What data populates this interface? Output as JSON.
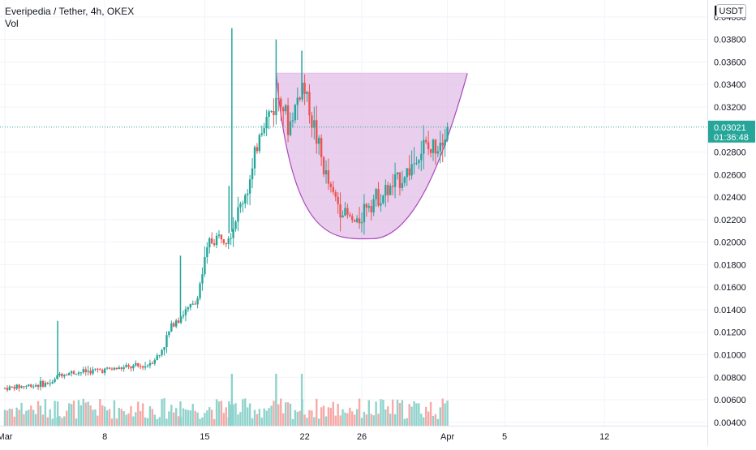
{
  "header": {
    "title": "Everipedia / Tether, 4h, OKEX",
    "volume_label": "Vol",
    "currency_button": "USDT"
  },
  "price_axis": {
    "ticks": [
      "0.04000",
      "0.03800",
      "0.03600",
      "0.03400",
      "0.03200",
      "0.02800",
      "0.02600",
      "0.02400",
      "0.02200",
      "0.02000",
      "0.01800",
      "0.01600",
      "0.01400",
      "0.01200",
      "0.01000",
      "0.00800",
      "0.00600",
      "0.00400"
    ],
    "last_price": "0.03021",
    "countdown": "01:36:48"
  },
  "time_axis": {
    "ticks": [
      {
        "label": "Mar",
        "day": 1
      },
      {
        "label": "8",
        "day": 8
      },
      {
        "label": "15",
        "day": 15
      },
      {
        "label": "22",
        "day": 22
      },
      {
        "label": "26",
        "day": 26
      },
      {
        "label": "Apr",
        "day": 32
      },
      {
        "label": "5",
        "day": 36
      },
      {
        "label": "12",
        "day": 43
      }
    ]
  },
  "colors": {
    "up": "#26a69a",
    "down": "#ef5350",
    "vol_up": "#8fd3cc",
    "vol_down": "#f7a9a7",
    "cup_fill": "#e1bee7",
    "cup_line": "#ab47bc",
    "price_line": "#26a69a",
    "grid": "#f0f3fa",
    "axis_text": "#131722"
  },
  "chart_data": {
    "type": "candlestick",
    "symbol": "Everipedia / Tether",
    "interval": "4h",
    "exchange": "OKEX",
    "x_unit": "day of March",
    "ylim": [
      0.0037,
      0.0415
    ],
    "last_price": 0.03021,
    "key_points": [
      {
        "day": 1.0,
        "price": 0.007
      },
      {
        "day": 4.5,
        "price": 0.0075
      },
      {
        "day": 5.0,
        "price": 0.0083
      },
      {
        "day": 11.0,
        "price": 0.009
      },
      {
        "day": 12.0,
        "price": 0.01
      },
      {
        "day": 13.0,
        "price": 0.013
      },
      {
        "day": 14.5,
        "price": 0.0145
      },
      {
        "day": 15.5,
        "price": 0.02
      },
      {
        "day": 17.0,
        "price": 0.021
      },
      {
        "day": 18.5,
        "price": 0.026
      },
      {
        "day": 19.0,
        "price": 0.03
      },
      {
        "day": 20.0,
        "price": 0.032
      },
      {
        "day": 20.5,
        "price": 0.0335
      },
      {
        "day": 21.0,
        "price": 0.03
      },
      {
        "day": 22.0,
        "price": 0.034
      },
      {
        "day": 22.5,
        "price": 0.032
      },
      {
        "day": 23.5,
        "price": 0.0265
      },
      {
        "day": 24.0,
        "price": 0.0245
      },
      {
        "day": 25.0,
        "price": 0.0225
      },
      {
        "day": 25.8,
        "price": 0.0215
      },
      {
        "day": 26.5,
        "price": 0.0235
      },
      {
        "day": 28.0,
        "price": 0.0245
      },
      {
        "day": 29.5,
        "price": 0.0265
      },
      {
        "day": 30.5,
        "price": 0.0285
      },
      {
        "day": 31.0,
        "price": 0.028
      },
      {
        "day": 31.5,
        "price": 0.029
      },
      {
        "day": 32.1,
        "price": 0.0302
      }
    ],
    "spikes": [
      {
        "day": 4.7,
        "high": 0.013
      },
      {
        "day": 13.3,
        "high": 0.0188
      },
      {
        "day": 16.9,
        "high": 0.039
      },
      {
        "day": 16.7,
        "high": 0.025
      },
      {
        "day": 20.0,
        "high": 0.038
      },
      {
        "day": 21.8,
        "high": 0.037
      }
    ],
    "cup_pattern": {
      "rim_price": 0.035,
      "bottom_price": 0.0203,
      "left_rim_day": 20.0,
      "bottom_day": 26.7,
      "right_rim_day": 33.4
    }
  }
}
